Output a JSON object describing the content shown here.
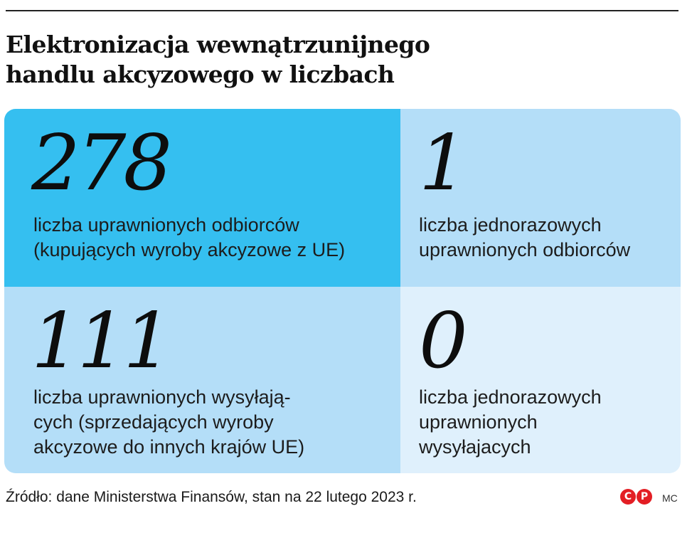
{
  "title": {
    "line1": "Elektronizacja wewnątrzunijnego",
    "line2": "handlu akcyzowego w liczbach"
  },
  "colors": {
    "cell_highlight": "#35bff0",
    "cell_medium": "#b4def8",
    "cell_light": "#dff0fc",
    "logo": "#e31e24"
  },
  "cells": [
    {
      "value": "278",
      "lines": [
        "liczba uprawnionych odbiorców",
        "(kupujących wyroby akcyzowe z UE)"
      ]
    },
    {
      "value": "1",
      "lines": [
        "liczba jednorazowych",
        "uprawnionych odbiorców"
      ]
    },
    {
      "value": "111",
      "lines": [
        "liczba uprawnionych wysyłają-",
        "cych (sprzedających wyroby",
        "akcyzowe do innych krajów UE)"
      ]
    },
    {
      "value": "0",
      "lines": [
        "liczba jednorazowych",
        "uprawnionych",
        "wysyłajacych"
      ]
    }
  ],
  "footer": {
    "source": "Źródło: dane Ministerstwa Finansów, stan na 22 lutego 2023 r.",
    "logo_c": "C",
    "logo_p": "P",
    "author": "MC"
  }
}
